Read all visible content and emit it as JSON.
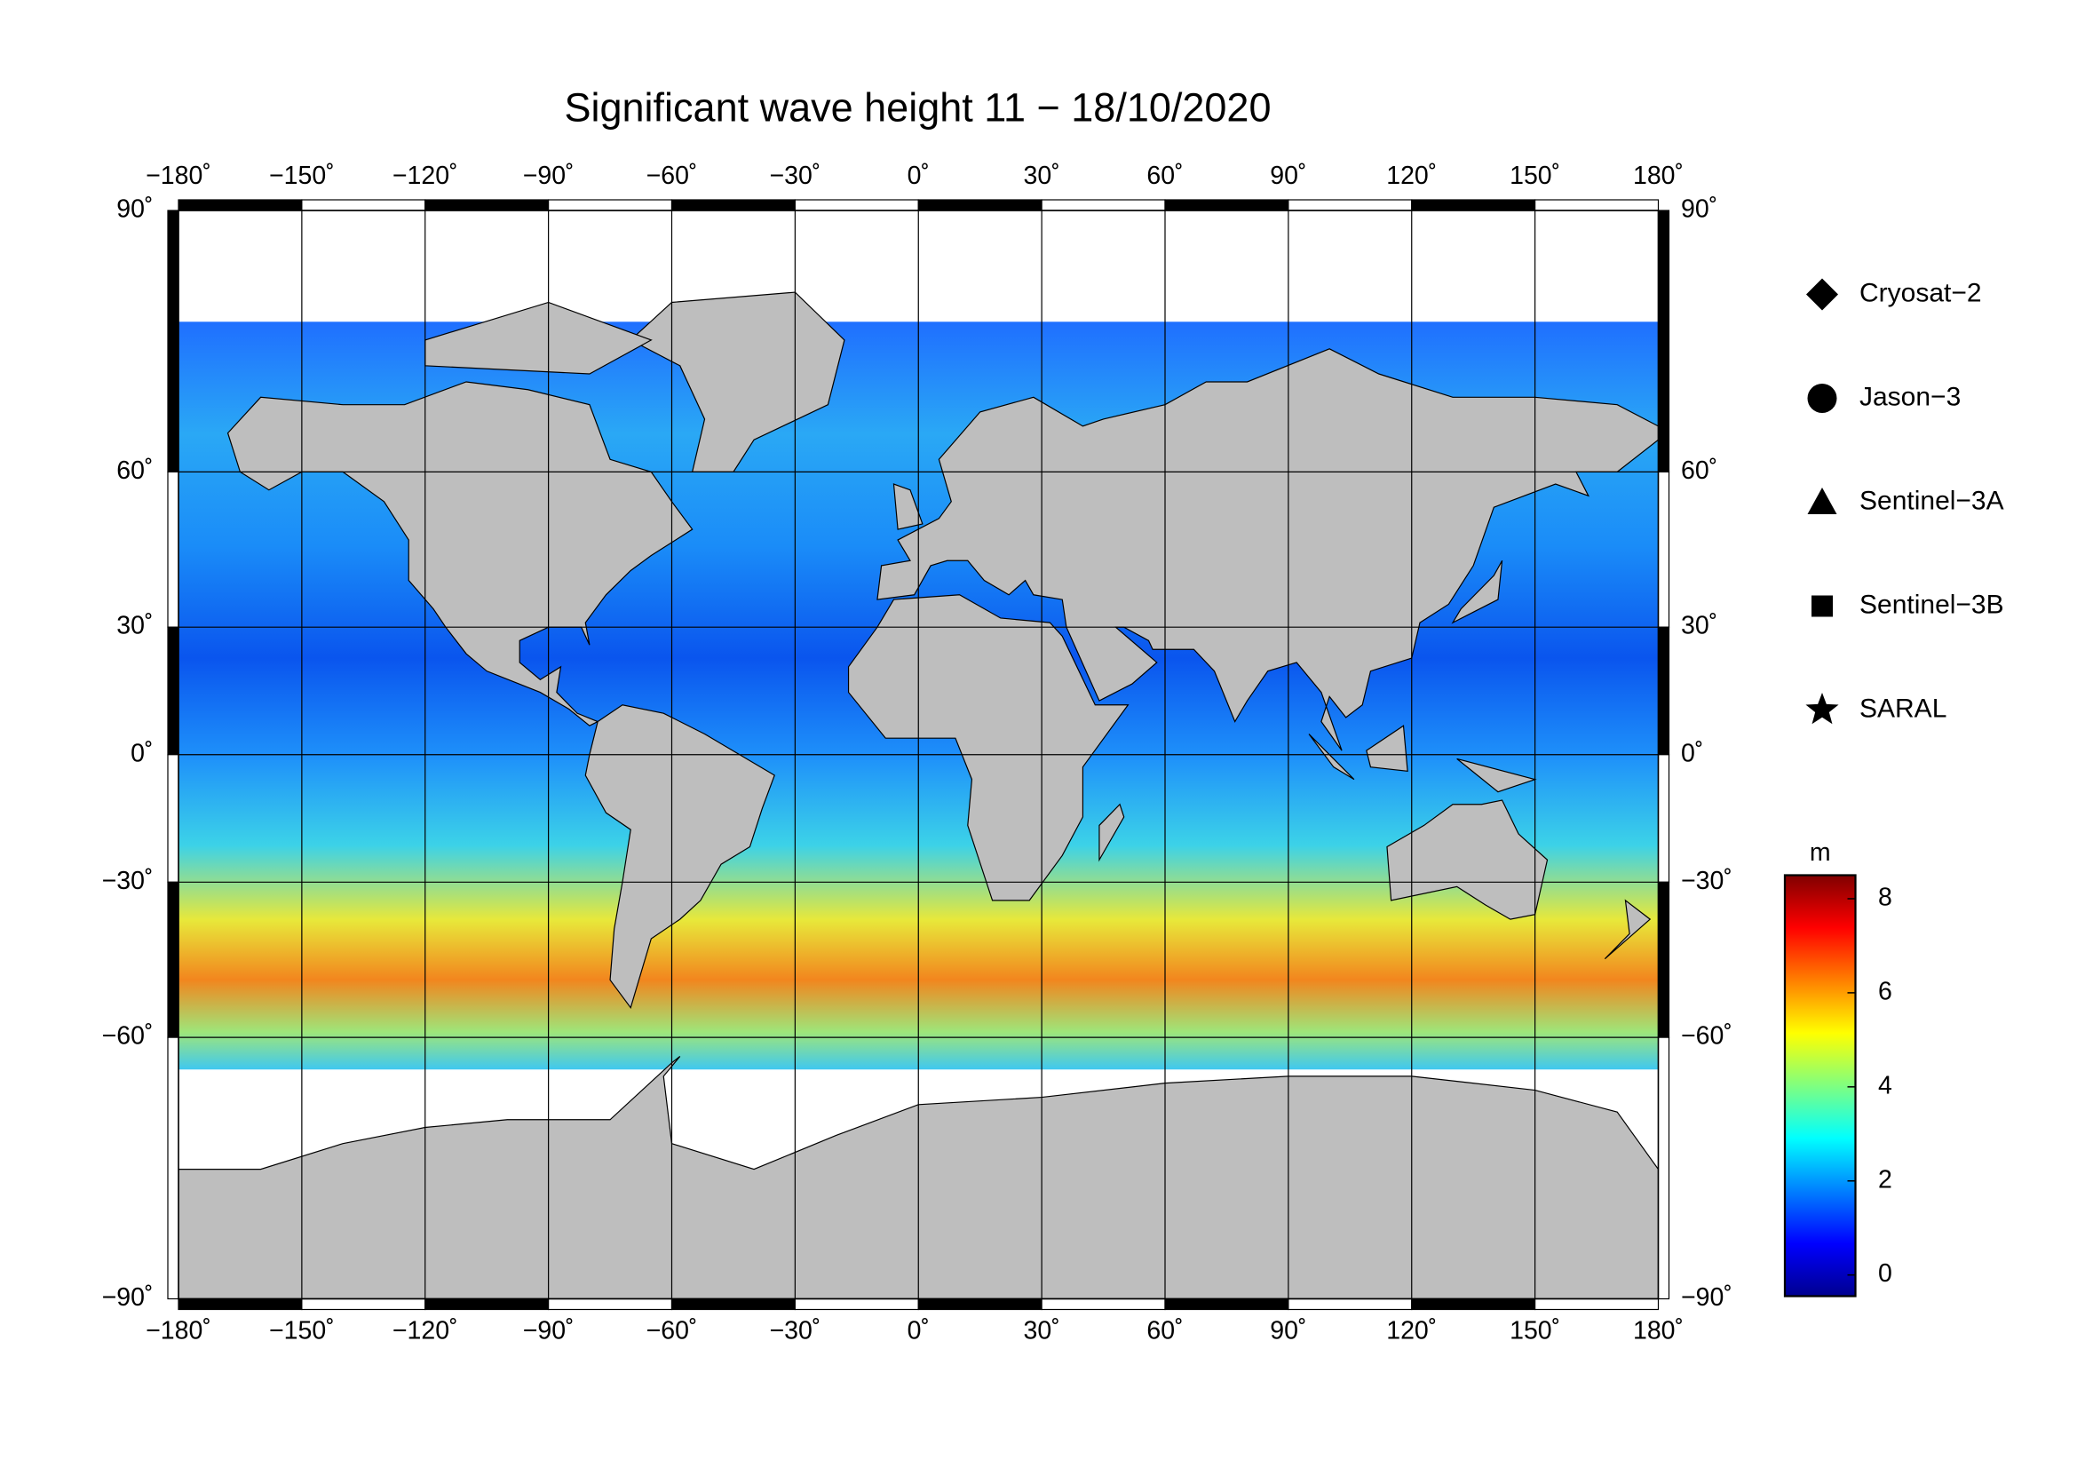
{
  "map": {
    "title": "Significant wave height 11 − 18/10/2020",
    "lon_ticks": [
      {
        "value": -180,
        "label": "−180˚"
      },
      {
        "value": -150,
        "label": "−150˚"
      },
      {
        "value": -120,
        "label": "−120˚"
      },
      {
        "value": -90,
        "label": "−90˚"
      },
      {
        "value": -60,
        "label": "−60˚"
      },
      {
        "value": -30,
        "label": "−30˚"
      },
      {
        "value": 0,
        "label": "0˚"
      },
      {
        "value": 30,
        "label": "30˚"
      },
      {
        "value": 60,
        "label": "60˚"
      },
      {
        "value": 90,
        "label": "90˚"
      },
      {
        "value": 120,
        "label": "120˚"
      },
      {
        "value": 150,
        "label": "150˚"
      },
      {
        "value": 180,
        "label": "180˚"
      }
    ],
    "lat_ticks": [
      {
        "value": 90,
        "label": "90˚"
      },
      {
        "value": 60,
        "label": "60˚"
      },
      {
        "value": 30,
        "label": "30˚"
      },
      {
        "value": 0,
        "label": "0˚"
      },
      {
        "value": -30,
        "label": "−30˚"
      },
      {
        "value": -60,
        "label": "−60˚"
      },
      {
        "value": -90,
        "label": "−90˚"
      }
    ],
    "legend": [
      {
        "name": "Cryosat−2",
        "marker": "diamond"
      },
      {
        "name": "Jason−3",
        "marker": "circle"
      },
      {
        "name": "Sentinel−3A",
        "marker": "triangle"
      },
      {
        "name": "Sentinel−3B",
        "marker": "square"
      },
      {
        "name": "SARAL",
        "marker": "star"
      }
    ],
    "colorbar": {
      "unit": "m",
      "clim": [
        -0.45,
        8.5
      ],
      "ticks": [
        0,
        2,
        4,
        6,
        8
      ]
    }
  }
}
